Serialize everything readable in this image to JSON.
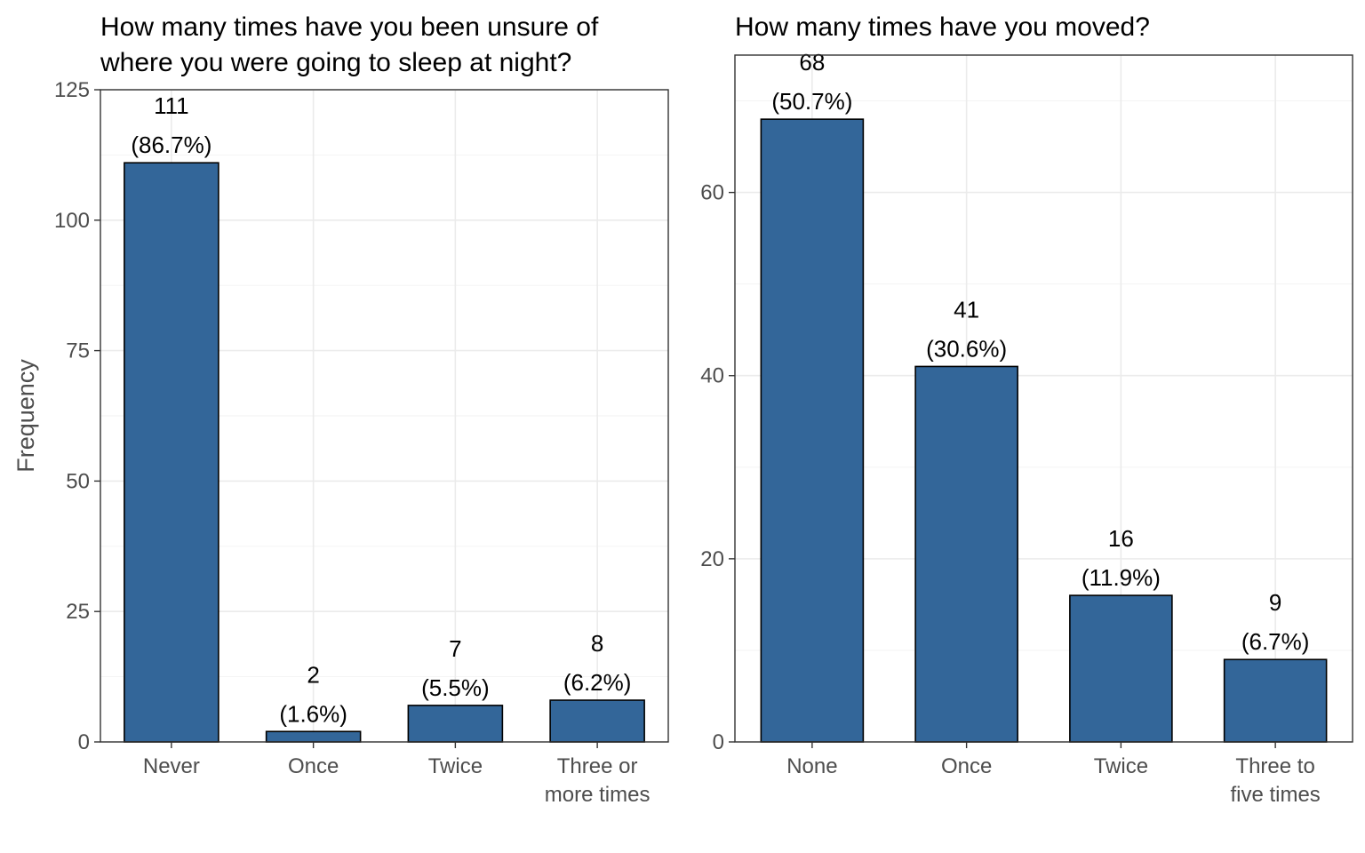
{
  "chart_data": [
    {
      "type": "bar",
      "title": [
        "How many times have you been unsure of",
        "where you were going to sleep at night?"
      ],
      "ylabel": "Frequency",
      "xlabel": "",
      "ylim": [
        0,
        125
      ],
      "yticks": [
        0,
        25,
        50,
        75,
        100,
        125
      ],
      "categories": [
        [
          "Never"
        ],
        [
          "Once"
        ],
        [
          "Twice"
        ],
        [
          "Three or",
          "more times"
        ]
      ],
      "values": [
        111,
        2,
        7,
        8
      ],
      "labels_count": [
        "111",
        "2",
        "7",
        "8"
      ],
      "labels_pct": [
        "(86.7%)",
        "(1.6%)",
        "(5.5%)",
        "(6.2%)"
      ],
      "bar_color": "#336699",
      "grid": true
    },
    {
      "type": "bar",
      "title": [
        "How many times have you moved?"
      ],
      "ylabel": "",
      "xlabel": "",
      "ylim": [
        0,
        75
      ],
      "yticks": [
        0,
        20,
        40,
        60
      ],
      "categories": [
        [
          "None"
        ],
        [
          "Once"
        ],
        [
          "Twice"
        ],
        [
          "Three to",
          "five times"
        ]
      ],
      "values": [
        68,
        41,
        16,
        9
      ],
      "labels_count": [
        "68",
        "41",
        "16",
        "9"
      ],
      "labels_pct": [
        "(50.7%)",
        "(30.6%)",
        "(11.9%)",
        "(6.7%)"
      ],
      "bar_color": "#336699",
      "grid": true
    }
  ]
}
